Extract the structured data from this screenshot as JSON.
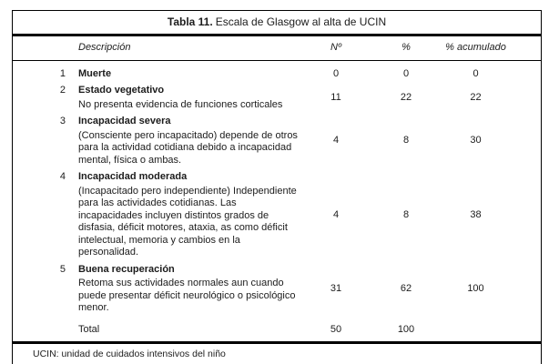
{
  "table": {
    "title_bold": "Tabla 11.",
    "title_rest": "Escala de Glasgow al alta de UCIN",
    "columns": {
      "description": "Descripción",
      "n": "Nº",
      "pct": "%",
      "pct_cum": "% acumulado"
    },
    "rows": [
      {
        "num": "1",
        "label": "Muerte",
        "detail": "",
        "n": "0",
        "pct": "0",
        "pct_cum": "0"
      },
      {
        "num": "2",
        "label": "Estado vegetativo",
        "detail": "No presenta evidencia de funciones corticales",
        "n": "11",
        "pct": "22",
        "pct_cum": "22"
      },
      {
        "num": "3",
        "label": "Incapacidad severa",
        "detail": "(Consciente pero incapacitado) depende de otros para la actividad cotidiana debido a incapacidad mental, física o ambas.",
        "n": "4",
        "pct": "8",
        "pct_cum": "30"
      },
      {
        "num": "4",
        "label": "Incapacidad moderada",
        "detail": "(Incapacitado pero independiente) Independiente para las actividades cotidianas. Las incapacidades incluyen distintos grados de disfasia, déficit motores, ataxia, as como déficit intelectual, memoria y cambios en la personalidad.",
        "n": "4",
        "pct": "8",
        "pct_cum": "38"
      },
      {
        "num": "5",
        "label": "Buena recuperación",
        "detail": "Retoma sus actividades normales aun cuando puede presentar déficit neurológico o psicológico menor.",
        "n": "31",
        "pct": "62",
        "pct_cum": "100"
      }
    ],
    "total": {
      "label": "Total",
      "n": "50",
      "pct": "100",
      "pct_cum": ""
    },
    "footnote": "UCIN: unidad de cuidados intensivos del niño"
  },
  "colors": {
    "border": "#000000",
    "text": "#1c1c1c",
    "background": "#ffffff"
  }
}
